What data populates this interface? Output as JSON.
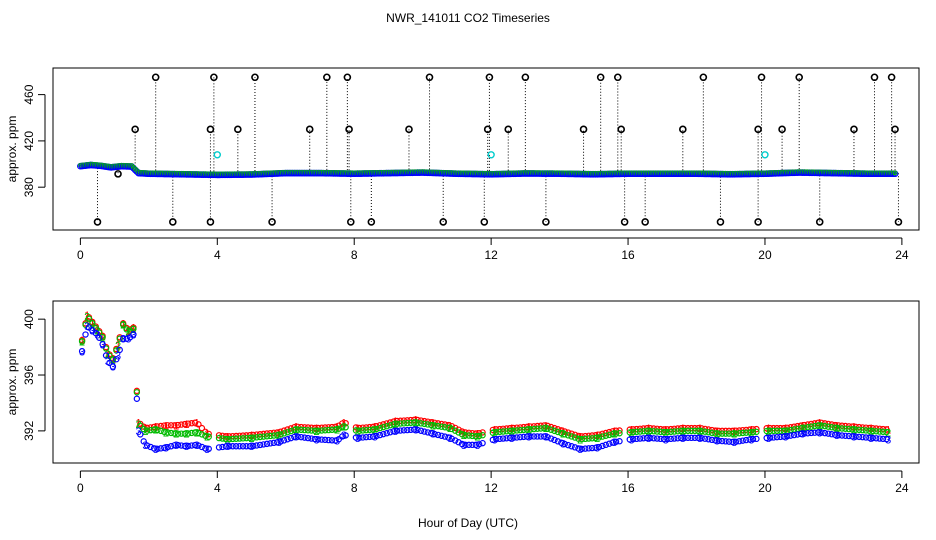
{
  "title": "NWR_141011  CO2 Timeseries",
  "xlabel": "Hour of Day (UTC)",
  "colors": {
    "series1": "#ff0000",
    "series2": "#00bb00",
    "series3": "#0000ff",
    "outlier": "#000000",
    "flagged": "#00cccc",
    "frame": "#000000"
  },
  "chart_data": [
    {
      "type": "scatter",
      "panel": "top",
      "ylabel": "approx. ppm",
      "xlim": [
        -0.8,
        24.5
      ],
      "ylim": [
        343,
        483
      ],
      "xticks": [
        0,
        4,
        8,
        12,
        16,
        20,
        24
      ],
      "xtick_labels": [
        "0",
        "4",
        "8",
        "12",
        "16",
        "20",
        "24"
      ],
      "yticks": [
        380,
        420,
        460
      ],
      "ytick_labels": [
        "380",
        "420",
        "460"
      ],
      "baseline": {
        "description": "dense blue/green/red circles forming the main CO2 trace",
        "points": [
          [
            0,
            398.5
          ],
          [
            0.3,
            399.5
          ],
          [
            0.6,
            398.8
          ],
          [
            0.9,
            397.5
          ],
          [
            1.2,
            398.5
          ],
          [
            1.5,
            398.2
          ],
          [
            1.7,
            392.5
          ],
          [
            2.0,
            392
          ],
          [
            3.0,
            391.5
          ],
          [
            4.0,
            391
          ],
          [
            5.0,
            391.3
          ],
          [
            6.0,
            392.5
          ],
          [
            7.0,
            392.5
          ],
          [
            8.0,
            392
          ],
          [
            9.0,
            392.5
          ],
          [
            10.0,
            393
          ],
          [
            11.0,
            392
          ],
          [
            12.0,
            391.5
          ],
          [
            13.0,
            392.2
          ],
          [
            14.0,
            392
          ],
          [
            15.0,
            391.5
          ],
          [
            16.0,
            392
          ],
          [
            17.0,
            392
          ],
          [
            18.0,
            392
          ],
          [
            19.0,
            391.5
          ],
          [
            20.0,
            392
          ],
          [
            21.0,
            393
          ],
          [
            22.0,
            392.5
          ],
          [
            23.0,
            392
          ],
          [
            23.8,
            392
          ]
        ]
      },
      "outliers_high": {
        "description": "black circles with dotted stems rising from the baseline",
        "points": [
          [
            1.6,
            430
          ],
          [
            2.2,
            475
          ],
          [
            3.8,
            430
          ],
          [
            3.9,
            475
          ],
          [
            4.6,
            430
          ],
          [
            5.1,
            475
          ],
          [
            6.7,
            430
          ],
          [
            7.2,
            475
          ],
          [
            7.8,
            475
          ],
          [
            7.85,
            430
          ],
          [
            9.6,
            430
          ],
          [
            10.2,
            475
          ],
          [
            11.9,
            430
          ],
          [
            11.95,
            475
          ],
          [
            12.5,
            430
          ],
          [
            13.0,
            475
          ],
          [
            14.7,
            430
          ],
          [
            15.2,
            475
          ],
          [
            15.7,
            475
          ],
          [
            15.8,
            430
          ],
          [
            17.6,
            430
          ],
          [
            18.2,
            475
          ],
          [
            19.8,
            430
          ],
          [
            19.9,
            475
          ],
          [
            20.5,
            430
          ],
          [
            21.0,
            475
          ],
          [
            22.6,
            430
          ],
          [
            23.2,
            475
          ],
          [
            23.7,
            475
          ],
          [
            23.8,
            430
          ]
        ]
      },
      "outliers_low": {
        "description": "black circles with dotted stems dropping below the baseline",
        "points": [
          [
            0.5,
            350
          ],
          [
            1.1,
            391.5
          ],
          [
            2.7,
            350
          ],
          [
            3.8,
            350
          ],
          [
            5.6,
            350
          ],
          [
            7.9,
            350
          ],
          [
            8.5,
            350
          ],
          [
            10.6,
            350
          ],
          [
            11.8,
            350
          ],
          [
            13.6,
            350
          ],
          [
            15.9,
            350
          ],
          [
            16.5,
            350
          ],
          [
            18.7,
            350
          ],
          [
            19.8,
            350
          ],
          [
            21.6,
            350
          ],
          [
            23.9,
            350
          ]
        ]
      },
      "flagged": {
        "description": "cyan circles",
        "points": [
          [
            4.0,
            408
          ],
          [
            12.0,
            408
          ],
          [
            20.0,
            408
          ]
        ]
      }
    },
    {
      "type": "scatter",
      "panel": "bottom",
      "ylabel": "approx. ppm",
      "xlim": [
        -0.8,
        24.5
      ],
      "ylim": [
        389.7,
        401.3
      ],
      "xticks": [
        0,
        4,
        8,
        12,
        16,
        20,
        24
      ],
      "xtick_labels": [
        "0",
        "4",
        "8",
        "12",
        "16",
        "20",
        "24"
      ],
      "yticks": [
        392,
        396,
        400
      ],
      "ytick_labels": [
        "392",
        "396",
        "400"
      ],
      "series": [
        {
          "name": "1",
          "marker": "1",
          "color": "#ff0000",
          "points": [
            [
              0.05,
              398.5
            ],
            [
              0.2,
              400.3
            ],
            [
              0.35,
              399.8
            ],
            [
              0.5,
              399.3
            ],
            [
              0.65,
              398.8
            ],
            [
              0.8,
              397.6
            ],
            [
              0.95,
              397.2
            ],
            [
              1.1,
              398.2
            ],
            [
              1.25,
              399.7
            ],
            [
              1.4,
              399.2
            ],
            [
              1.55,
              399.4
            ],
            [
              1.7,
              392.6
            ],
            [
              1.9,
              392.2
            ],
            [
              2.2,
              392.3
            ],
            [
              2.5,
              392.4
            ],
            [
              2.8,
              392.4
            ],
            [
              3.1,
              392.5
            ],
            [
              3.4,
              392.6
            ],
            [
              3.7,
              391.8
            ],
            [
              4.3,
              391.6
            ],
            [
              5.0,
              391.7
            ],
            [
              5.8,
              391.9
            ],
            [
              6.3,
              392.3
            ],
            [
              6.9,
              392.2
            ],
            [
              7.5,
              392.3
            ],
            [
              7.7,
              392.6
            ],
            [
              8.1,
              392.2
            ],
            [
              8.6,
              392.3
            ],
            [
              9.2,
              392.7
            ],
            [
              9.8,
              392.8
            ],
            [
              10.3,
              392.6
            ],
            [
              10.8,
              392.4
            ],
            [
              11.2,
              391.9
            ],
            [
              11.6,
              391.8
            ],
            [
              12.1,
              392.1
            ],
            [
              12.6,
              392.2
            ],
            [
              13.1,
              392.3
            ],
            [
              13.6,
              392.4
            ],
            [
              14.1,
              392.0
            ],
            [
              14.6,
              391.6
            ],
            [
              15.1,
              391.7
            ],
            [
              15.6,
              392.0
            ],
            [
              16.1,
              392.1
            ],
            [
              16.6,
              392.2
            ],
            [
              17.1,
              392.1
            ],
            [
              17.6,
              392.2
            ],
            [
              18.1,
              392.2
            ],
            [
              18.6,
              392.0
            ],
            [
              19.1,
              392.0
            ],
            [
              19.6,
              392.1
            ],
            [
              20.1,
              392.2
            ],
            [
              20.6,
              392.2
            ],
            [
              21.1,
              392.4
            ],
            [
              21.6,
              392.6
            ],
            [
              22.1,
              392.4
            ],
            [
              22.6,
              392.3
            ],
            [
              23.1,
              392.2
            ],
            [
              23.6,
              392.1
            ]
          ]
        },
        {
          "name": "2",
          "marker": "2",
          "color": "#00bb00",
          "points": [
            [
              0.05,
              398.4
            ],
            [
              0.2,
              400.2
            ],
            [
              0.35,
              399.7
            ],
            [
              0.5,
              399.2
            ],
            [
              0.65,
              398.7
            ],
            [
              0.8,
              397.5
            ],
            [
              0.95,
              397.1
            ],
            [
              1.1,
              398.1
            ],
            [
              1.25,
              399.6
            ],
            [
              1.4,
              399.1
            ],
            [
              1.55,
              399.3
            ],
            [
              1.7,
              392.5
            ],
            [
              1.9,
              392.0
            ],
            [
              2.2,
              392.1
            ],
            [
              2.5,
              391.9
            ],
            [
              2.8,
              391.8
            ],
            [
              3.1,
              391.8
            ],
            [
              3.4,
              391.9
            ],
            [
              3.7,
              391.6
            ],
            [
              4.3,
              391.4
            ],
            [
              5.0,
              391.5
            ],
            [
              5.8,
              391.7
            ],
            [
              6.3,
              392.1
            ],
            [
              6.9,
              392.0
            ],
            [
              7.5,
              392.1
            ],
            [
              7.7,
              392.3
            ],
            [
              8.1,
              392.0
            ],
            [
              8.6,
              392.1
            ],
            [
              9.2,
              392.5
            ],
            [
              9.8,
              392.6
            ],
            [
              10.3,
              392.4
            ],
            [
              10.8,
              392.2
            ],
            [
              11.2,
              391.7
            ],
            [
              11.6,
              391.6
            ],
            [
              12.1,
              391.9
            ],
            [
              12.6,
              392.0
            ],
            [
              13.1,
              392.1
            ],
            [
              13.6,
              392.2
            ],
            [
              14.1,
              391.8
            ],
            [
              14.6,
              391.4
            ],
            [
              15.1,
              391.5
            ],
            [
              15.6,
              391.8
            ],
            [
              16.1,
              391.9
            ],
            [
              16.6,
              392.0
            ],
            [
              17.1,
              391.9
            ],
            [
              17.6,
              392.0
            ],
            [
              18.1,
              392.0
            ],
            [
              18.6,
              391.8
            ],
            [
              19.1,
              391.8
            ],
            [
              19.6,
              391.9
            ],
            [
              20.1,
              392.0
            ],
            [
              20.6,
              392.0
            ],
            [
              21.1,
              392.2
            ],
            [
              21.6,
              392.4
            ],
            [
              22.1,
              392.2
            ],
            [
              22.6,
              392.1
            ],
            [
              23.1,
              392.0
            ],
            [
              23.6,
              391.9
            ]
          ]
        },
        {
          "name": "3",
          "marker": "3",
          "color": "#0000ff",
          "points": [
            [
              0.05,
              397.7
            ],
            [
              0.2,
              399.5
            ],
            [
              0.35,
              399.2
            ],
            [
              0.5,
              398.9
            ],
            [
              0.65,
              398.2
            ],
            [
              0.8,
              397.0
            ],
            [
              0.95,
              396.6
            ],
            [
              1.1,
              397.4
            ],
            [
              1.25,
              398.6
            ],
            [
              1.4,
              398.6
            ],
            [
              1.55,
              398.9
            ],
            [
              1.7,
              392.0
            ],
            [
              1.9,
              391.0
            ],
            [
              2.2,
              390.7
            ],
            [
              2.5,
              390.8
            ],
            [
              2.8,
              391.0
            ],
            [
              3.1,
              390.9
            ],
            [
              3.4,
              391.0
            ],
            [
              3.7,
              390.7
            ],
            [
              4.3,
              390.9
            ],
            [
              5.0,
              390.9
            ],
            [
              5.8,
              391.2
            ],
            [
              6.3,
              391.6
            ],
            [
              6.9,
              391.4
            ],
            [
              7.5,
              391.3
            ],
            [
              7.7,
              391.7
            ],
            [
              8.1,
              391.5
            ],
            [
              8.6,
              391.6
            ],
            [
              9.2,
              392.0
            ],
            [
              9.8,
              392.1
            ],
            [
              10.3,
              391.8
            ],
            [
              10.8,
              391.5
            ],
            [
              11.2,
              391.0
            ],
            [
              11.6,
              391.0
            ],
            [
              12.1,
              391.4
            ],
            [
              12.6,
              391.5
            ],
            [
              13.1,
              391.6
            ],
            [
              13.6,
              391.6
            ],
            [
              14.1,
              391.1
            ],
            [
              14.6,
              390.7
            ],
            [
              15.1,
              390.8
            ],
            [
              15.6,
              391.2
            ],
            [
              16.1,
              391.4
            ],
            [
              16.6,
              391.5
            ],
            [
              17.1,
              391.4
            ],
            [
              17.6,
              391.5
            ],
            [
              18.1,
              391.5
            ],
            [
              18.6,
              391.3
            ],
            [
              19.1,
              391.2
            ],
            [
              19.6,
              391.4
            ],
            [
              20.1,
              391.5
            ],
            [
              20.6,
              391.6
            ],
            [
              21.1,
              391.8
            ],
            [
              21.6,
              391.9
            ],
            [
              22.1,
              391.7
            ],
            [
              22.6,
              391.6
            ],
            [
              23.1,
              391.5
            ],
            [
              23.6,
              391.4
            ]
          ]
        }
      ]
    }
  ]
}
